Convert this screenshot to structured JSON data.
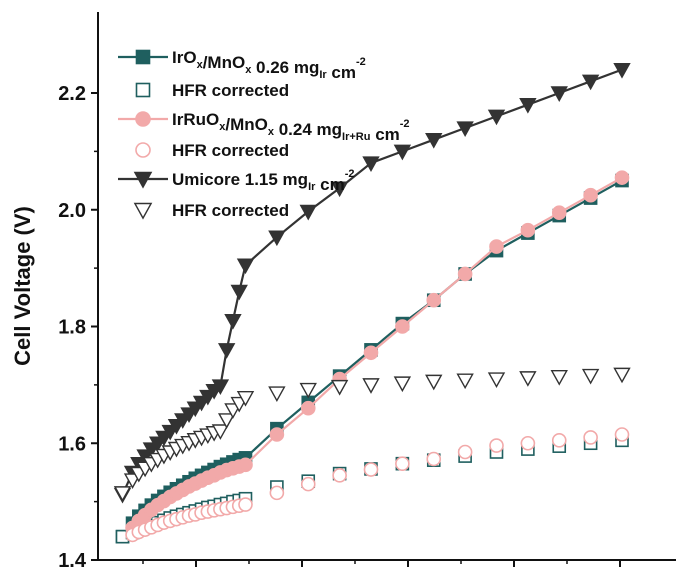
{
  "chart_data": {
    "type": "line",
    "xlabel": "",
    "ylabel": "Cell Voltage (V)",
    "ylim": [
      1.4,
      2.33
    ],
    "xlim": [
      0,
      5.0
    ],
    "xticks": [
      0.5,
      1.0,
      1.5,
      2.0,
      2.5,
      3.0,
      3.5,
      4.0,
      4.5,
      5.0
    ],
    "yticks": [
      "1.4",
      "1.6",
      "1.8",
      "2.0",
      "2.2"
    ],
    "grid": false,
    "legend_position": "top-left",
    "series": [
      {
        "name": "IrOx/MnOx 0.26 mgIr cm-2",
        "legend": {
          "parts": [
            [
              "IrO",
              ""
            ],
            [
              "x",
              "sub"
            ],
            [
              "/MnO",
              ""
            ],
            [
              "x",
              "sub"
            ],
            [
              " 0.26 mg",
              ""
            ],
            [
              "Ir",
              "sub"
            ],
            [
              " cm",
              ""
            ],
            [
              "-2",
              "sup"
            ]
          ]
        },
        "marker": "square",
        "filled": true,
        "line": true,
        "color": "#1f5f5f",
        "x": [
          0.02,
          0.1,
          0.15,
          0.2,
          0.25,
          0.3,
          0.35,
          0.4,
          0.45,
          0.5,
          0.55,
          0.6,
          0.65,
          0.7,
          0.75,
          0.8,
          0.85,
          0.9,
          0.95,
          1.0,
          1.25,
          1.5,
          1.75,
          2.0,
          2.25,
          2.5,
          2.75,
          3.0,
          3.25,
          3.5,
          3.75,
          4.0
        ],
        "y": [
          1.44,
          1.463,
          1.475,
          1.485,
          1.494,
          1.502,
          1.509,
          1.516,
          1.522,
          1.528,
          1.534,
          1.54,
          1.545,
          1.55,
          1.555,
          1.56,
          1.564,
          1.568,
          1.572,
          1.575,
          1.625,
          1.67,
          1.715,
          1.76,
          1.805,
          1.845,
          1.89,
          1.93,
          1.96,
          1.99,
          2.02,
          2.05
        ]
      },
      {
        "name": "HFR corrected",
        "marker": "square",
        "filled": false,
        "line": false,
        "color": "#1f5f5f",
        "x": [
          0.02,
          0.1,
          0.15,
          0.2,
          0.25,
          0.3,
          0.35,
          0.4,
          0.45,
          0.5,
          0.55,
          0.6,
          0.65,
          0.7,
          0.75,
          0.8,
          0.85,
          0.9,
          0.95,
          1.0,
          1.25,
          1.5,
          1.75,
          2.0,
          2.25,
          2.5,
          2.75,
          3.0,
          3.25,
          3.5,
          3.75,
          4.0
        ],
        "y": [
          1.44,
          1.447,
          1.452,
          1.456,
          1.46,
          1.464,
          1.468,
          1.472,
          1.475,
          1.478,
          1.481,
          1.484,
          1.487,
          1.49,
          1.492,
          1.495,
          1.497,
          1.5,
          1.502,
          1.505,
          1.525,
          1.535,
          1.548,
          1.556,
          1.565,
          1.571,
          1.578,
          1.585,
          1.59,
          1.595,
          1.6,
          1.605
        ]
      },
      {
        "name": "IrRuOx/MnOx 0.24 mgIr+Ru cm-2",
        "legend": {
          "parts": [
            [
              "IrRuO",
              ""
            ],
            [
              "x",
              "sub"
            ],
            [
              "/MnO",
              ""
            ],
            [
              "x",
              "sub"
            ],
            [
              " 0.24 mg",
              ""
            ],
            [
              "Ir+Ru",
              "sub"
            ],
            [
              " cm",
              ""
            ],
            [
              "-2",
              "sup"
            ]
          ]
        },
        "marker": "circle",
        "filled": true,
        "line": true,
        "color": "#f2a9a9",
        "x": [
          0.1,
          0.15,
          0.2,
          0.25,
          0.3,
          0.35,
          0.4,
          0.45,
          0.5,
          0.55,
          0.6,
          0.65,
          0.7,
          0.75,
          0.8,
          0.85,
          0.9,
          0.95,
          1.0,
          1.25,
          1.5,
          1.75,
          2.0,
          2.25,
          2.5,
          2.75,
          3.0,
          3.25,
          3.5,
          3.75,
          4.0
        ],
        "y": [
          1.455,
          1.467,
          1.477,
          1.486,
          1.494,
          1.501,
          1.508,
          1.514,
          1.52,
          1.526,
          1.531,
          1.536,
          1.541,
          1.545,
          1.55,
          1.554,
          1.557,
          1.56,
          1.563,
          1.615,
          1.66,
          1.71,
          1.755,
          1.8,
          1.845,
          1.89,
          1.937,
          1.965,
          1.995,
          2.025,
          2.055
        ]
      },
      {
        "name": "HFR corrected",
        "marker": "circle",
        "filled": false,
        "line": false,
        "color": "#f2a9a9",
        "x": [
          0.1,
          0.15,
          0.2,
          0.25,
          0.3,
          0.35,
          0.4,
          0.45,
          0.5,
          0.55,
          0.6,
          0.65,
          0.7,
          0.75,
          0.8,
          0.85,
          0.9,
          0.95,
          1.0,
          1.25,
          1.5,
          1.75,
          2.0,
          2.25,
          2.5,
          2.75,
          3.0,
          3.25,
          3.5,
          3.75,
          4.0
        ],
        "y": [
          1.443,
          1.448,
          1.452,
          1.456,
          1.46,
          1.464,
          1.467,
          1.47,
          1.473,
          1.476,
          1.478,
          1.481,
          1.483,
          1.485,
          1.487,
          1.489,
          1.491,
          1.493,
          1.495,
          1.515,
          1.53,
          1.545,
          1.555,
          1.565,
          1.573,
          1.585,
          1.596,
          1.6,
          1.605,
          1.61,
          1.615
        ]
      },
      {
        "name": "Umicore 1.15 mgIr cm-2",
        "legend": {
          "parts": [
            [
              "Umicore 1.15 mg",
              ""
            ],
            [
              "Ir",
              "sub"
            ],
            [
              " cm",
              ""
            ],
            [
              "-2",
              "sup"
            ]
          ]
        },
        "marker": "triangle-down",
        "filled": true,
        "line": true,
        "color": "#333333",
        "x": [
          0.02,
          0.1,
          0.15,
          0.2,
          0.25,
          0.3,
          0.35,
          0.4,
          0.45,
          0.5,
          0.55,
          0.6,
          0.65,
          0.7,
          0.75,
          0.8,
          0.85,
          0.9,
          0.95,
          1.0,
          1.25,
          1.5,
          1.75,
          2.0,
          2.25,
          2.5,
          2.75,
          3.0,
          3.25,
          3.5,
          3.75,
          4.0
        ],
        "y": [
          1.512,
          1.55,
          1.565,
          1.578,
          1.59,
          1.6,
          1.61,
          1.62,
          1.63,
          1.64,
          1.65,
          1.66,
          1.67,
          1.68,
          1.69,
          1.698,
          1.76,
          1.81,
          1.86,
          1.905,
          1.953,
          1.997,
          2.037,
          2.08,
          2.1,
          2.12,
          2.14,
          2.16,
          2.18,
          2.2,
          2.22,
          2.24
        ]
      },
      {
        "name": "HFR corrected",
        "marker": "triangle-down",
        "filled": false,
        "line": false,
        "color": "#333333",
        "x": [
          0.02,
          0.1,
          0.15,
          0.2,
          0.25,
          0.3,
          0.35,
          0.4,
          0.45,
          0.5,
          0.55,
          0.6,
          0.65,
          0.7,
          0.75,
          0.8,
          0.85,
          0.9,
          0.95,
          1.0,
          1.25,
          1.5,
          1.75,
          2.0,
          2.25,
          2.5,
          2.75,
          3.0,
          3.25,
          3.5,
          3.75,
          4.0
        ],
        "y": [
          1.515,
          1.537,
          1.548,
          1.557,
          1.565,
          1.572,
          1.579,
          1.585,
          1.591,
          1.596,
          1.601,
          1.606,
          1.61,
          1.614,
          1.618,
          1.621,
          1.64,
          1.657,
          1.668,
          1.678,
          1.686,
          1.692,
          1.697,
          1.7,
          1.703,
          1.706,
          1.708,
          1.71,
          1.712,
          1.714,
          1.716,
          1.718
        ]
      }
    ]
  }
}
